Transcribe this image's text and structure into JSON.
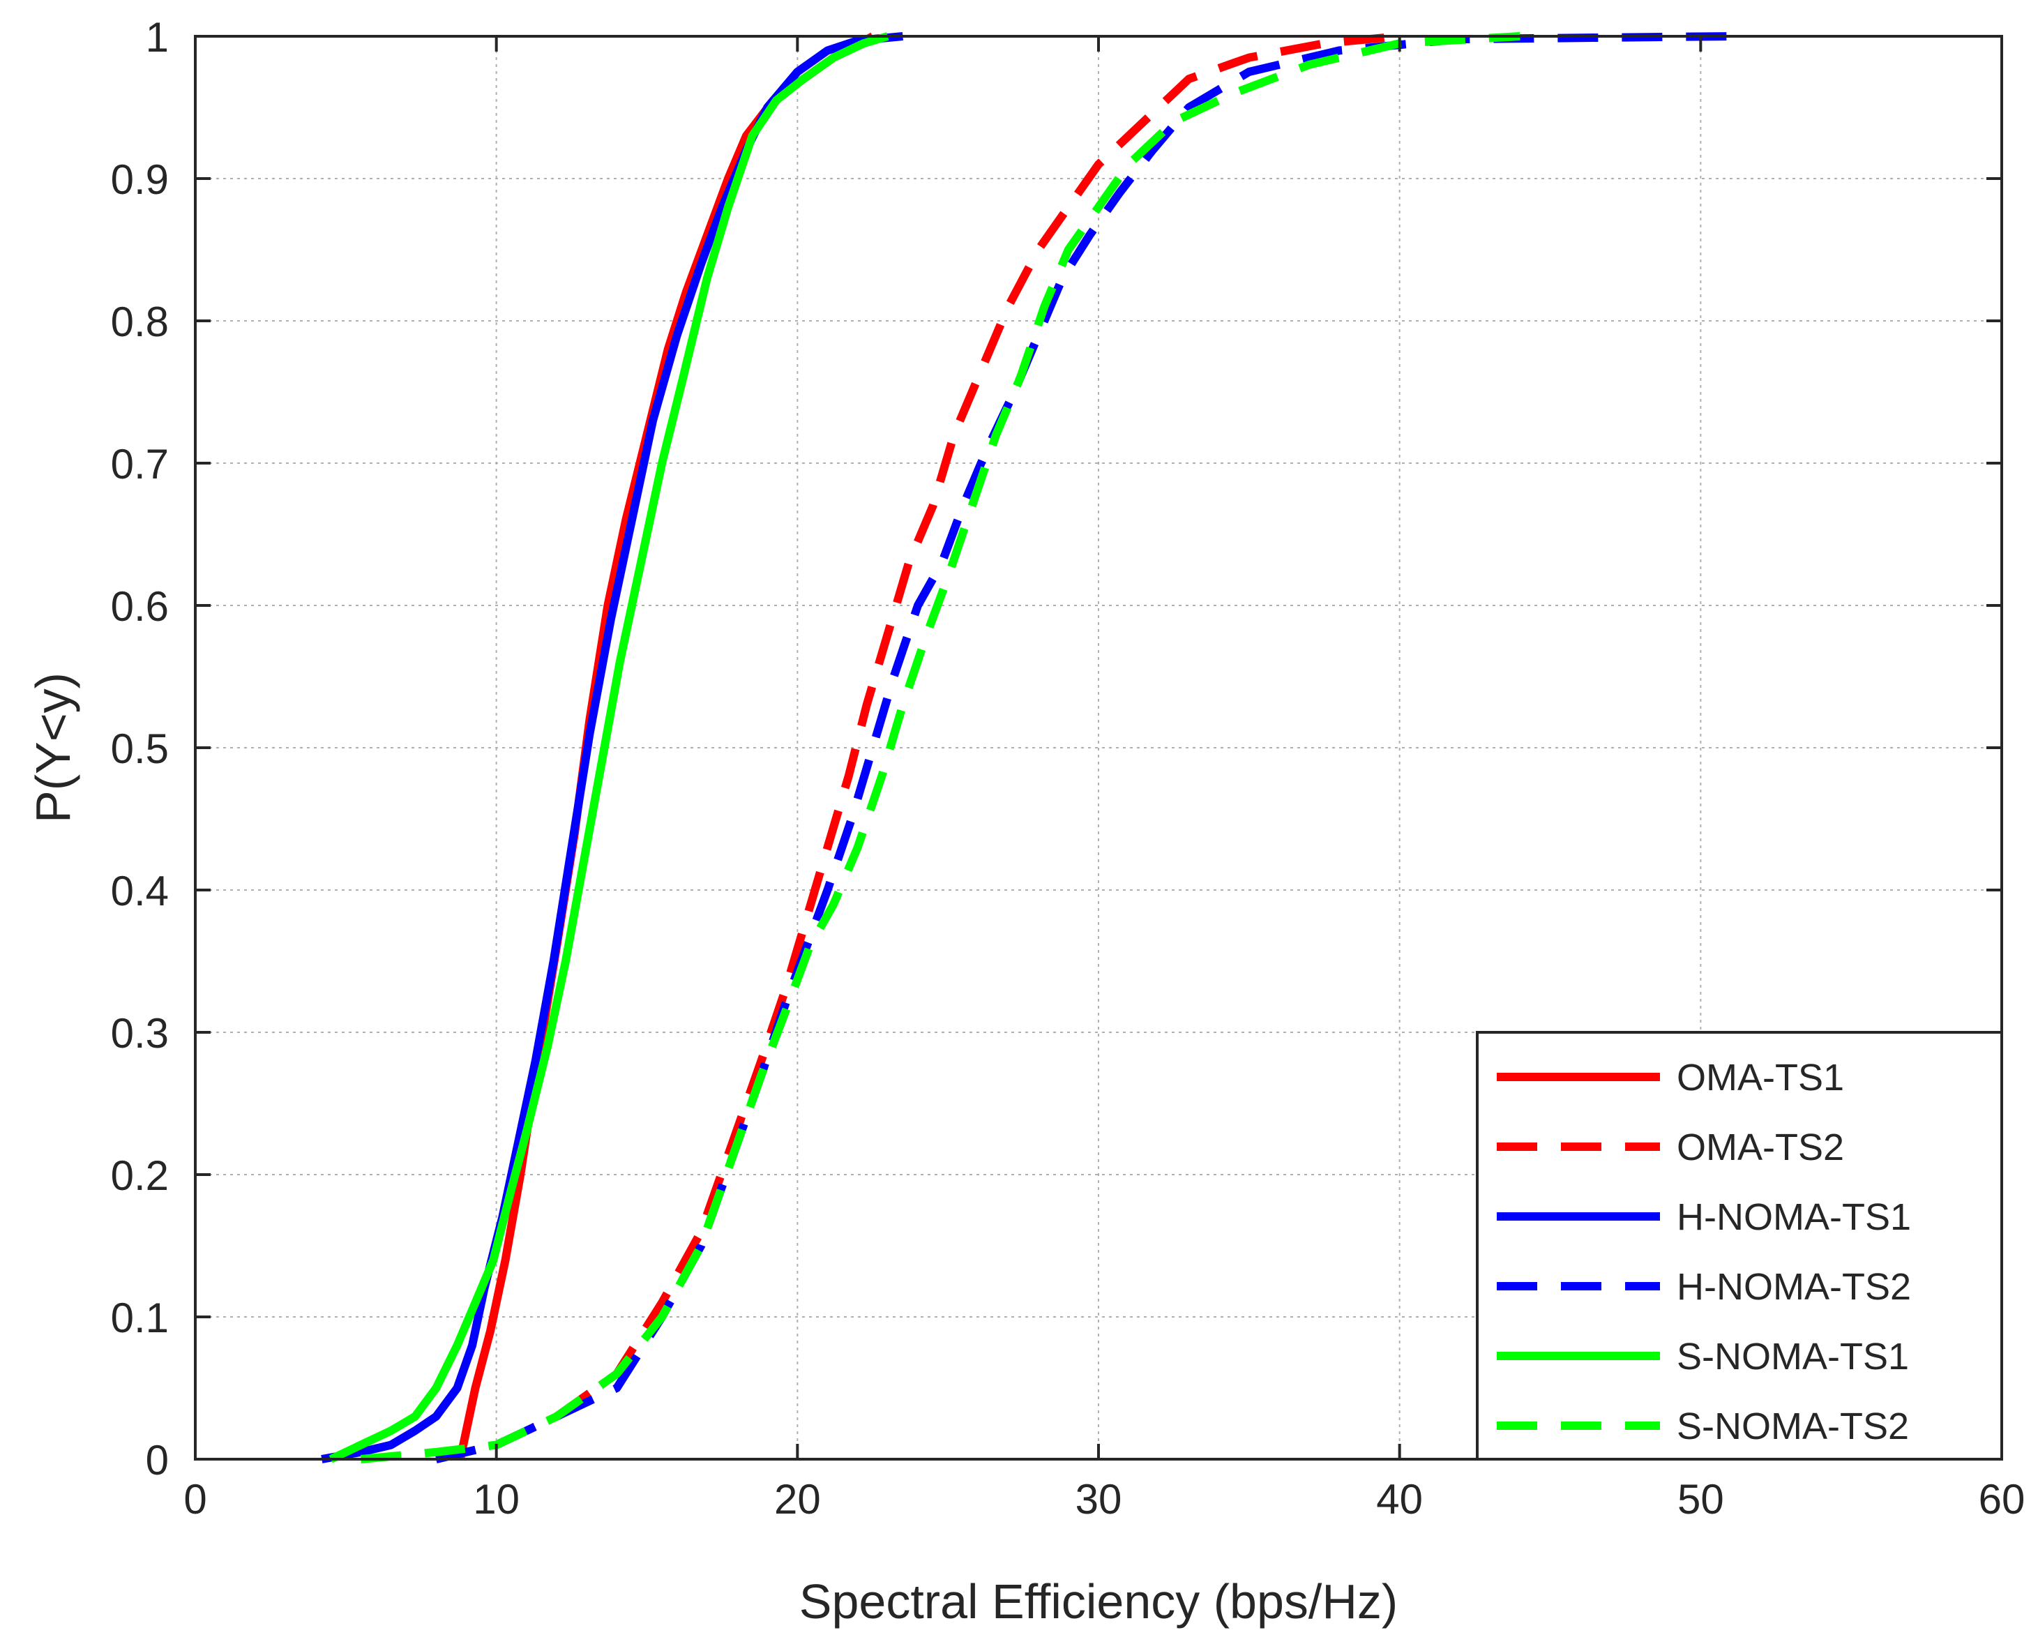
{
  "chart_data": {
    "type": "line",
    "title": "",
    "xlabel": "Spectral Efficiency (bps/Hz)",
    "ylabel": "P(Y<y)",
    "xlim": [
      0,
      60
    ],
    "ylim": [
      0,
      1
    ],
    "xticks": [
      0,
      10,
      20,
      30,
      40,
      50,
      60
    ],
    "yticks": [
      0,
      0.1,
      0.2,
      0.3,
      0.4,
      0.5,
      0.6,
      0.7,
      0.8,
      0.9,
      1
    ],
    "x_tick_labels": [
      "0",
      "10",
      "20",
      "30",
      "40",
      "50",
      "60"
    ],
    "y_tick_labels": [
      "0",
      "0.1",
      "0.2",
      "0.3",
      "0.4",
      "0.5",
      "0.6",
      "0.7",
      "0.8",
      "0.9",
      "1"
    ],
    "grid": true,
    "legend_position": "bottom-right",
    "series": [
      {
        "name": "OMA-TS1",
        "color": "#ff0000",
        "dash": "solid",
        "points": [
          [
            8.8,
            0
          ],
          [
            9.0,
            0.02
          ],
          [
            9.3,
            0.05
          ],
          [
            9.8,
            0.09
          ],
          [
            10.3,
            0.14
          ],
          [
            10.8,
            0.2
          ],
          [
            11.3,
            0.27
          ],
          [
            12.0,
            0.36
          ],
          [
            12.6,
            0.44
          ],
          [
            13.1,
            0.52
          ],
          [
            13.7,
            0.6
          ],
          [
            14.3,
            0.66
          ],
          [
            15.0,
            0.72
          ],
          [
            15.7,
            0.78
          ],
          [
            16.3,
            0.82
          ],
          [
            17.0,
            0.86
          ],
          [
            17.7,
            0.9
          ],
          [
            18.3,
            0.93
          ],
          [
            19.2,
            0.955
          ],
          [
            20.2,
            0.97
          ],
          [
            21.2,
            0.985
          ],
          [
            22.5,
            1
          ]
        ]
      },
      {
        "name": "OMA-TS2",
        "color": "#ff0000",
        "dash": "dashed",
        "points": [
          [
            8.0,
            0
          ],
          [
            10.0,
            0.01
          ],
          [
            12.0,
            0.03
          ],
          [
            14.0,
            0.06
          ],
          [
            15.5,
            0.11
          ],
          [
            16.8,
            0.16
          ],
          [
            17.8,
            0.22
          ],
          [
            18.8,
            0.28
          ],
          [
            19.6,
            0.33
          ],
          [
            20.3,
            0.38
          ],
          [
            21.0,
            0.43
          ],
          [
            21.7,
            0.48
          ],
          [
            22.3,
            0.53
          ],
          [
            23.0,
            0.58
          ],
          [
            23.7,
            0.63
          ],
          [
            24.5,
            0.67
          ],
          [
            25.2,
            0.72
          ],
          [
            26.0,
            0.76
          ],
          [
            27.0,
            0.81
          ],
          [
            28.0,
            0.85
          ],
          [
            29.0,
            0.88
          ],
          [
            30.0,
            0.91
          ],
          [
            31.5,
            0.94
          ],
          [
            33.0,
            0.97
          ],
          [
            35.0,
            0.985
          ],
          [
            37.5,
            0.995
          ],
          [
            40.0,
            1
          ]
        ]
      },
      {
        "name": "H-NOMA-TS1",
        "color": "#0000ff",
        "dash": "solid",
        "points": [
          [
            4.2,
            0
          ],
          [
            5.5,
            0.005
          ],
          [
            6.5,
            0.01
          ],
          [
            7.3,
            0.02
          ],
          [
            8.0,
            0.03
          ],
          [
            8.7,
            0.05
          ],
          [
            9.2,
            0.08
          ],
          [
            9.6,
            0.12
          ],
          [
            10.2,
            0.17
          ],
          [
            10.7,
            0.22
          ],
          [
            11.3,
            0.28
          ],
          [
            11.9,
            0.35
          ],
          [
            12.5,
            0.43
          ],
          [
            13.1,
            0.51
          ],
          [
            13.8,
            0.59
          ],
          [
            14.5,
            0.66
          ],
          [
            15.2,
            0.73
          ],
          [
            16.0,
            0.79
          ],
          [
            16.8,
            0.84
          ],
          [
            17.5,
            0.88
          ],
          [
            18.3,
            0.92
          ],
          [
            19.0,
            0.95
          ],
          [
            20.0,
            0.975
          ],
          [
            21.0,
            0.99
          ],
          [
            22.0,
            0.997
          ],
          [
            23.5,
            1
          ]
        ]
      },
      {
        "name": "H-NOMA-TS2",
        "color": "#0000ff",
        "dash": "dashed",
        "points": [
          [
            8.0,
            0
          ],
          [
            10.0,
            0.01
          ],
          [
            12.0,
            0.03
          ],
          [
            14.0,
            0.05
          ],
          [
            15.5,
            0.1
          ],
          [
            16.8,
            0.15
          ],
          [
            17.8,
            0.21
          ],
          [
            18.8,
            0.27
          ],
          [
            19.6,
            0.32
          ],
          [
            20.3,
            0.36
          ],
          [
            21.0,
            0.4
          ],
          [
            21.8,
            0.45
          ],
          [
            22.5,
            0.5
          ],
          [
            23.2,
            0.55
          ],
          [
            24.0,
            0.6
          ],
          [
            24.8,
            0.63
          ],
          [
            25.5,
            0.67
          ],
          [
            26.3,
            0.71
          ],
          [
            27.2,
            0.75
          ],
          [
            28.0,
            0.79
          ],
          [
            28.8,
            0.83
          ],
          [
            29.7,
            0.86
          ],
          [
            30.7,
            0.89
          ],
          [
            31.8,
            0.92
          ],
          [
            33.0,
            0.95
          ],
          [
            35.0,
            0.975
          ],
          [
            38.0,
            0.99
          ],
          [
            42.0,
            0.998
          ],
          [
            51.0,
            1
          ]
        ]
      },
      {
        "name": "S-NOMA-TS1",
        "color": "#00ff00",
        "dash": "solid",
        "points": [
          [
            4.5,
            0
          ],
          [
            5.5,
            0.01
          ],
          [
            6.5,
            0.02
          ],
          [
            7.3,
            0.03
          ],
          [
            8.0,
            0.05
          ],
          [
            8.7,
            0.08
          ],
          [
            9.3,
            0.11
          ],
          [
            9.9,
            0.14
          ],
          [
            10.5,
            0.19
          ],
          [
            11.0,
            0.23
          ],
          [
            11.7,
            0.29
          ],
          [
            12.3,
            0.35
          ],
          [
            12.9,
            0.42
          ],
          [
            13.5,
            0.49
          ],
          [
            14.1,
            0.56
          ],
          [
            14.8,
            0.63
          ],
          [
            15.5,
            0.7
          ],
          [
            16.2,
            0.76
          ],
          [
            17.0,
            0.83
          ],
          [
            17.7,
            0.88
          ],
          [
            18.5,
            0.93
          ],
          [
            19.3,
            0.955
          ],
          [
            20.2,
            0.97
          ],
          [
            21.2,
            0.985
          ],
          [
            22.2,
            0.995
          ],
          [
            23.0,
            1
          ]
        ]
      },
      {
        "name": "S-NOMA-TS2",
        "color": "#00ff00",
        "dash": "dashed",
        "points": [
          [
            5.5,
            0
          ],
          [
            8.0,
            0.005
          ],
          [
            10.0,
            0.01
          ],
          [
            12.0,
            0.03
          ],
          [
            14.0,
            0.06
          ],
          [
            15.5,
            0.1
          ],
          [
            16.8,
            0.15
          ],
          [
            17.8,
            0.21
          ],
          [
            18.8,
            0.27
          ],
          [
            19.7,
            0.32
          ],
          [
            20.4,
            0.36
          ],
          [
            21.2,
            0.39
          ],
          [
            22.0,
            0.43
          ],
          [
            22.8,
            0.48
          ],
          [
            23.5,
            0.53
          ],
          [
            24.3,
            0.58
          ],
          [
            25.0,
            0.62
          ],
          [
            25.8,
            0.67
          ],
          [
            26.6,
            0.72
          ],
          [
            27.4,
            0.76
          ],
          [
            28.2,
            0.81
          ],
          [
            29.0,
            0.85
          ],
          [
            30.0,
            0.88
          ],
          [
            31.0,
            0.91
          ],
          [
            32.5,
            0.94
          ],
          [
            34.5,
            0.96
          ],
          [
            37.0,
            0.98
          ],
          [
            40.0,
            0.995
          ],
          [
            44.0,
            1
          ]
        ]
      }
    ]
  }
}
